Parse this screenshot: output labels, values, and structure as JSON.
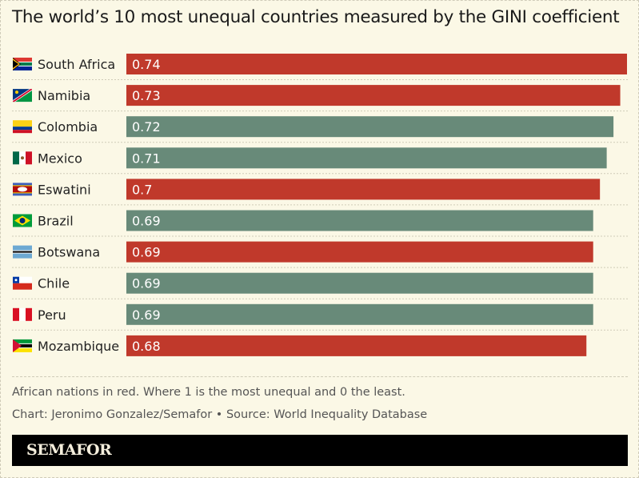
{
  "chart_data": {
    "type": "bar",
    "orientation": "horizontal",
    "title": "The world’s 10 most unequal countries measured by the GINI coefficient",
    "categories": [
      "South Africa",
      "Namibia",
      "Colombia",
      "Mexico",
      "Eswatini",
      "Brazil",
      "Botswana",
      "Chile",
      "Peru",
      "Mozambique"
    ],
    "values": [
      0.74,
      0.73,
      0.72,
      0.71,
      0.7,
      0.69,
      0.69,
      0.69,
      0.69,
      0.68
    ],
    "value_labels": [
      "0.74",
      "0.73",
      "0.72",
      "0.71",
      "0.7",
      "0.69",
      "0.69",
      "0.69",
      "0.69",
      "0.68"
    ],
    "african": [
      true,
      true,
      false,
      false,
      true,
      false,
      true,
      false,
      false,
      true
    ],
    "flags": [
      "flag-south-africa",
      "flag-namibia",
      "flag-colombia",
      "flag-mexico",
      "flag-eswatini",
      "flag-brazil",
      "flag-botswana",
      "flag-chile",
      "flag-peru",
      "flag-mozambique"
    ],
    "xlim": [
      0,
      0.74
    ],
    "grid": false,
    "colors": {
      "african": "#c0392b",
      "other": "#688a79",
      "background": "#fbf8e6"
    }
  },
  "notes": {
    "caption": "African nations in red. Where 1 is the most unequal and 0 the least.",
    "credit": "Chart: Jeronimo Gonzalez/Semafor • Source: World Inequality Database"
  },
  "brand": "SEMAFOR"
}
